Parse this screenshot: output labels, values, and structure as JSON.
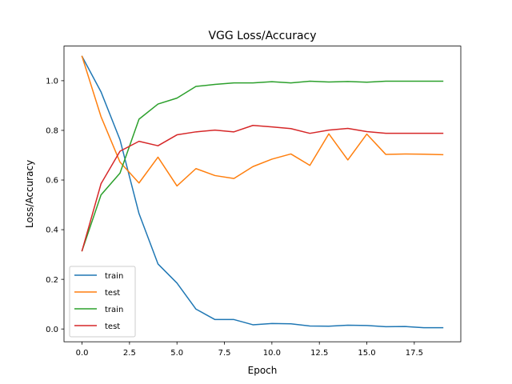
{
  "chart_data": {
    "type": "line",
    "title": "VGG Loss/Accuracy",
    "xlabel": "Epoch",
    "ylabel": "Loss/Accuracy",
    "xlim": [
      -0.95,
      19.95
    ],
    "ylim": [
      -0.0515,
      1.1395
    ],
    "xticks": [
      0.0,
      2.5,
      5.0,
      7.5,
      10.0,
      12.5,
      15.0,
      17.5
    ],
    "xtick_labels": [
      "0.0",
      "2.5",
      "5.0",
      "7.5",
      "10.0",
      "12.5",
      "15.0",
      "17.5"
    ],
    "yticks": [
      0.0,
      0.2,
      0.4,
      0.6,
      0.8,
      1.0
    ],
    "ytick_labels": [
      "0.0",
      "0.2",
      "0.4",
      "0.6",
      "0.8",
      "1.0"
    ],
    "grid": false,
    "legend_position": "lower-left",
    "x": [
      0,
      1,
      2,
      3,
      4,
      5,
      6,
      7,
      8,
      9,
      10,
      11,
      12,
      13,
      14,
      15,
      16,
      17,
      18,
      19
    ],
    "series": [
      {
        "name": "train",
        "color": "#1f77b4",
        "values": [
          1.098,
          0.955,
          0.762,
          0.465,
          0.262,
          0.185,
          0.08,
          0.038,
          0.038,
          0.017,
          0.022,
          0.021,
          0.012,
          0.011,
          0.015,
          0.014,
          0.009,
          0.01,
          0.005,
          0.005
        ]
      },
      {
        "name": "test",
        "color": "#ff7f0e",
        "values": [
          1.098,
          0.855,
          0.672,
          0.588,
          0.692,
          0.576,
          0.646,
          0.618,
          0.606,
          0.654,
          0.684,
          0.705,
          0.659,
          0.786,
          0.681,
          0.785,
          0.703,
          0.705,
          0.704,
          0.702
        ]
      },
      {
        "name": "train",
        "color": "#2ca02c",
        "values": [
          0.315,
          0.54,
          0.628,
          0.845,
          0.906,
          0.93,
          0.977,
          0.985,
          0.991,
          0.991,
          0.996,
          0.991,
          0.998,
          0.995,
          0.997,
          0.994,
          0.998,
          0.998,
          0.998,
          0.998
        ]
      },
      {
        "name": "test",
        "color": "#d62728",
        "values": [
          0.315,
          0.585,
          0.716,
          0.756,
          0.738,
          0.782,
          0.794,
          0.801,
          0.794,
          0.82,
          0.814,
          0.807,
          0.788,
          0.801,
          0.808,
          0.795,
          0.788,
          0.788,
          0.788,
          0.788
        ]
      }
    ]
  }
}
